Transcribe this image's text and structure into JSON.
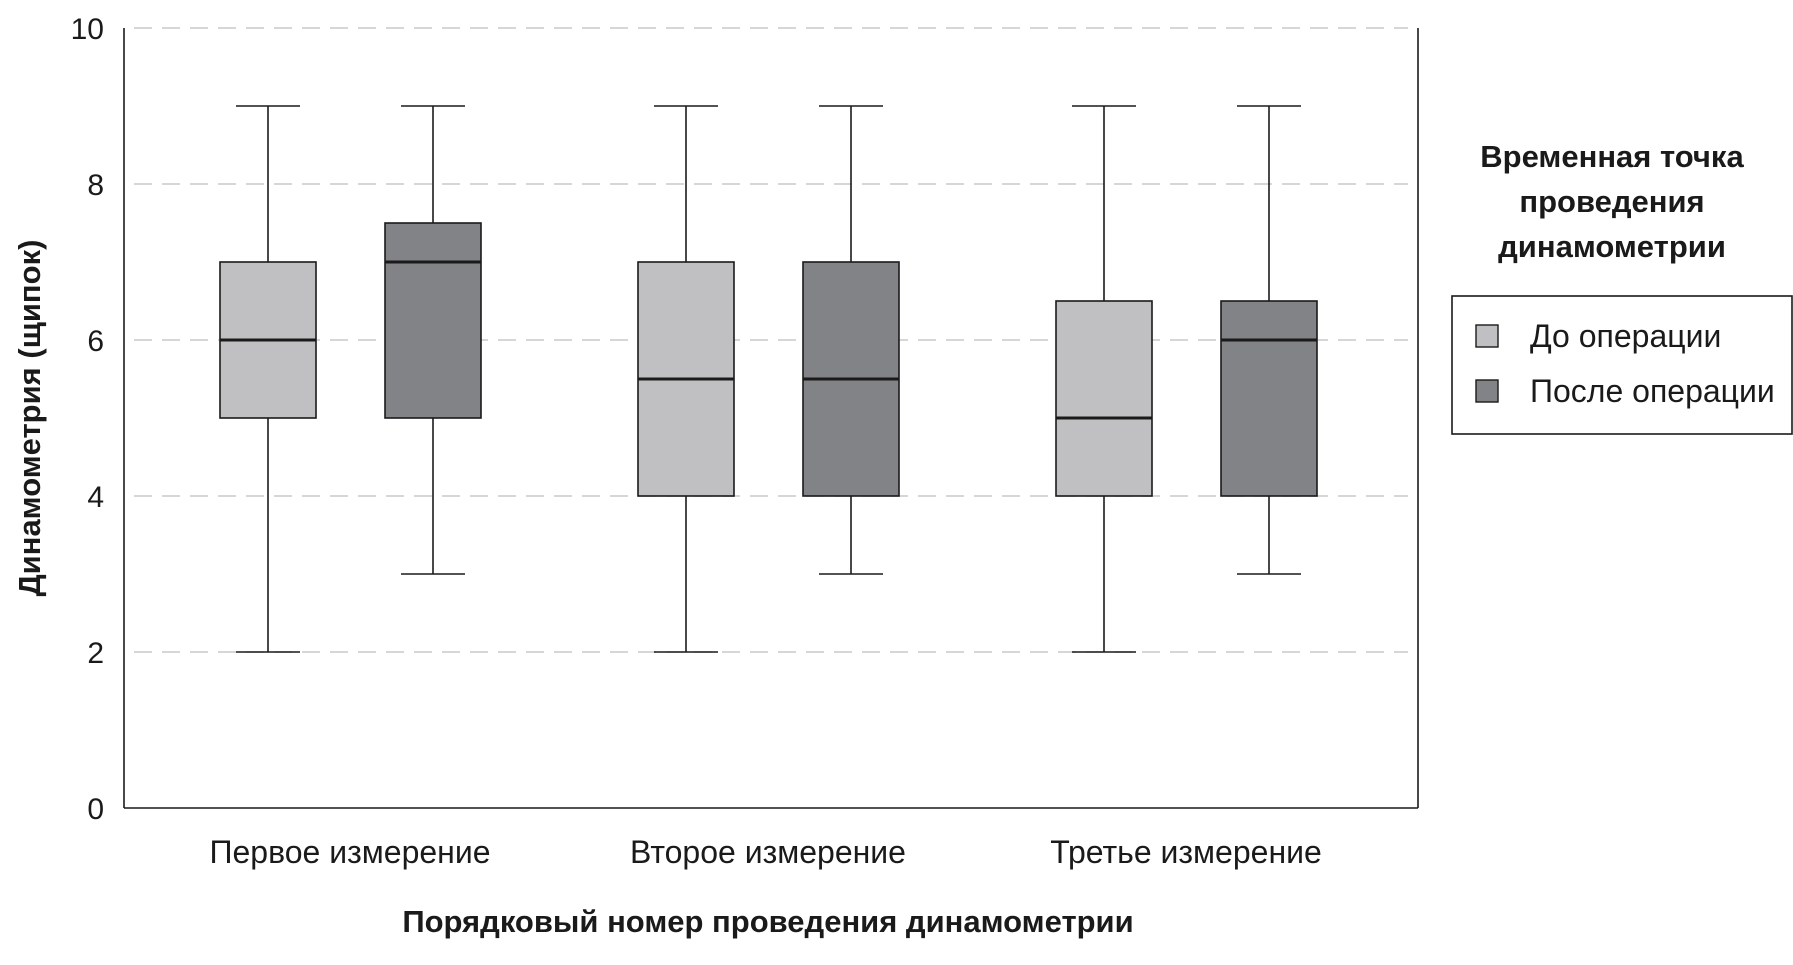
{
  "chart_data": {
    "type": "boxplot",
    "xlabel": "Порядковый номер проведения динамометрии",
    "ylabel": "Динамометрия (щипок)",
    "ylim": [
      0,
      10
    ],
    "yticks": [
      "0",
      "2",
      "4",
      "6",
      "8",
      "10"
    ],
    "grid": true,
    "legend_position": "right",
    "categories": [
      "Первое измерение",
      "Второе измерение",
      "Третье измерение"
    ],
    "legend": {
      "title": "Временная точка проведения динамометрии",
      "title_lines": [
        "Временная точка",
        "проведения",
        "динамометрии"
      ]
    },
    "series": [
      {
        "name": "До операции",
        "color": "#c0c0c2",
        "boxes": [
          {
            "min": 2,
            "q1": 5,
            "median": 6,
            "q3": 7,
            "max": 9
          },
          {
            "min": 2,
            "q1": 4,
            "median": 5.5,
            "q3": 7,
            "max": 9
          },
          {
            "min": 2,
            "q1": 4,
            "median": 5,
            "q3": 6.5,
            "max": 9
          }
        ]
      },
      {
        "name": "После операции",
        "color": "#828387",
        "boxes": [
          {
            "min": 3,
            "q1": 5,
            "median": 7,
            "q3": 7.5,
            "max": 9
          },
          {
            "min": 3,
            "q1": 4,
            "median": 5.5,
            "q3": 7,
            "max": 9
          },
          {
            "min": 3,
            "q1": 4,
            "median": 6,
            "q3": 6.5,
            "max": 9
          }
        ]
      }
    ]
  }
}
